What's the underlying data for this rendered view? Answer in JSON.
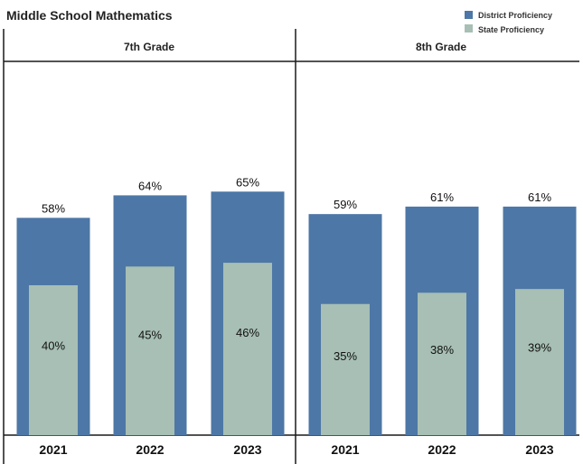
{
  "title": "Middle School Mathematics",
  "legend": {
    "district": "District Proficiency",
    "state": "State Proficiency"
  },
  "colors": {
    "district": "#4d77a6",
    "state": "#a7bfb4",
    "axis": "#1a1a1a"
  },
  "chart_data": [
    {
      "type": "bar",
      "title": "7th Grade",
      "categories": [
        "2021",
        "2022",
        "2023"
      ],
      "series": [
        {
          "name": "District Proficiency",
          "values": [
            58,
            64,
            65
          ]
        },
        {
          "name": "State Proficiency",
          "values": [
            40,
            45,
            46
          ]
        }
      ],
      "value_labels": {
        "district": [
          "58%",
          "64%",
          "65%"
        ],
        "state": [
          "40%",
          "45%",
          "46%"
        ]
      },
      "ylim": [
        0,
        100
      ],
      "grid": false,
      "legend_position": "top-right"
    },
    {
      "type": "bar",
      "title": "8th Grade",
      "categories": [
        "2021",
        "2022",
        "2023"
      ],
      "series": [
        {
          "name": "District Proficiency",
          "values": [
            59,
            61,
            61
          ]
        },
        {
          "name": "State Proficiency",
          "values": [
            35,
            38,
            39
          ]
        }
      ],
      "value_labels": {
        "district": [
          "59%",
          "61%",
          "61%"
        ],
        "state": [
          "35%",
          "38%",
          "39%"
        ]
      },
      "ylim": [
        0,
        100
      ],
      "grid": false,
      "legend_position": "top-right"
    }
  ]
}
